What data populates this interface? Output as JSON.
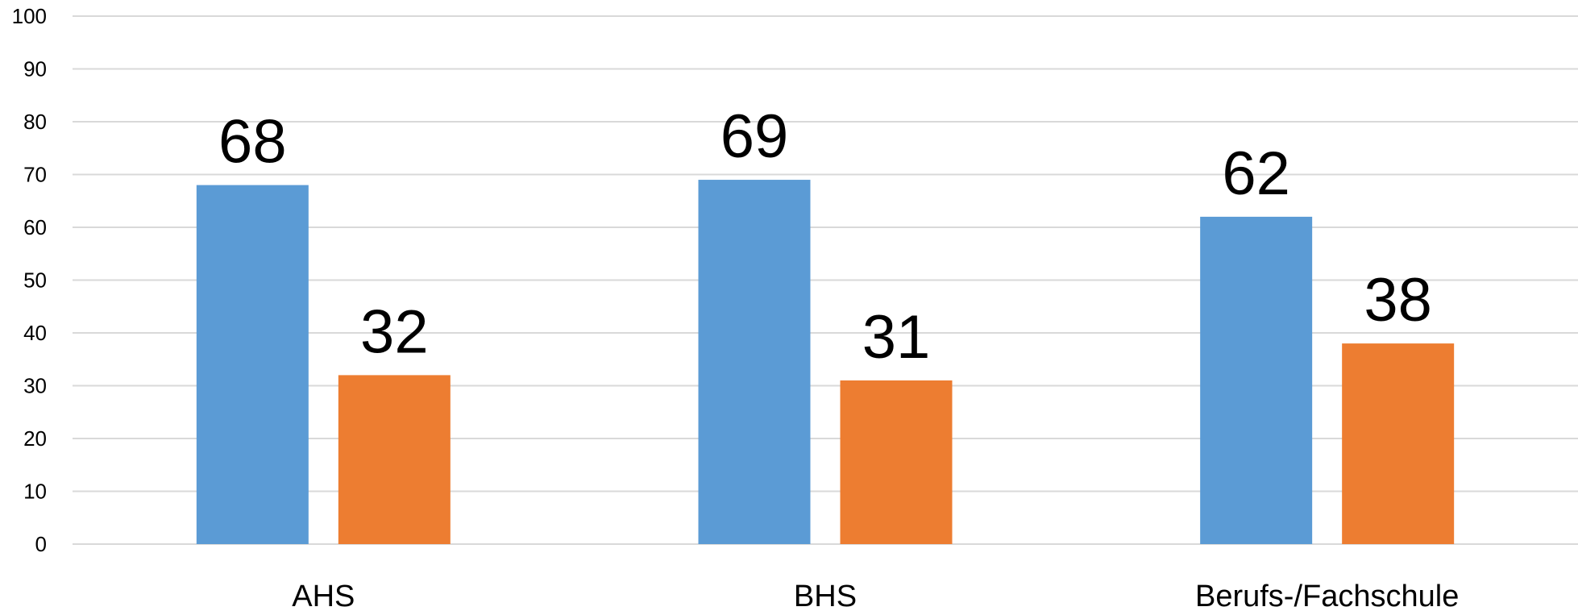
{
  "chart_data": {
    "type": "bar",
    "title": "",
    "xlabel": "",
    "ylabel": "",
    "categories": [
      "AHS",
      "BHS",
      "Berufs-/Fachschule"
    ],
    "series": [
      {
        "values": [
          68,
          69,
          62
        ],
        "color": "#5b9bd5"
      },
      {
        "values": [
          32,
          31,
          38
        ],
        "color": "#ed7d31"
      }
    ],
    "ylim": [
      0,
      100
    ],
    "yticks": [
      0,
      10,
      20,
      30,
      40,
      50,
      60,
      70,
      80,
      90,
      100
    ],
    "grid": true,
    "legend": "none",
    "data_labels": true
  }
}
